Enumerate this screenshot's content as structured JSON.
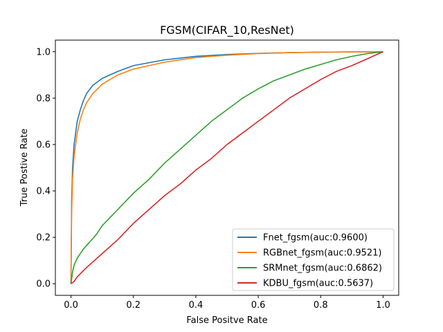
{
  "chart_data": {
    "type": "line",
    "title": "FGSM(CIFAR_10,ResNet)",
    "xlabel": "False Positve Rate",
    "ylabel": "True Postive Rate",
    "xlim": [
      -0.05,
      1.05
    ],
    "ylim": [
      -0.05,
      1.05
    ],
    "x_ticks": [
      "0.0",
      "0.2",
      "0.4",
      "0.6",
      "0.8",
      "1.0"
    ],
    "y_ticks": [
      "0.0",
      "0.2",
      "0.4",
      "0.6",
      "0.8",
      "1.0"
    ],
    "grid": false,
    "legend_position": "bottom-right",
    "series": [
      {
        "name": "Fnet_fgsm(auc:0.9600)",
        "color": "#1f77b4",
        "points": [
          [
            0,
            0
          ],
          [
            0.002,
            0.35
          ],
          [
            0.005,
            0.5
          ],
          [
            0.01,
            0.6
          ],
          [
            0.02,
            0.7
          ],
          [
            0.03,
            0.75
          ],
          [
            0.04,
            0.79
          ],
          [
            0.05,
            0.82
          ],
          [
            0.07,
            0.855
          ],
          [
            0.1,
            0.885
          ],
          [
            0.15,
            0.915
          ],
          [
            0.2,
            0.94
          ],
          [
            0.3,
            0.965
          ],
          [
            0.4,
            0.98
          ],
          [
            0.5,
            0.988
          ],
          [
            0.6,
            0.993
          ],
          [
            0.7,
            0.996
          ],
          [
            0.8,
            0.998
          ],
          [
            0.9,
            0.999
          ],
          [
            1.0,
            1.0
          ]
        ]
      },
      {
        "name": "RGBnet_fgsm(auc:0.9521)",
        "color": "#ff7f0e",
        "points": [
          [
            0,
            0
          ],
          [
            0.002,
            0.3
          ],
          [
            0.005,
            0.45
          ],
          [
            0.01,
            0.55
          ],
          [
            0.02,
            0.65
          ],
          [
            0.03,
            0.71
          ],
          [
            0.04,
            0.75
          ],
          [
            0.05,
            0.78
          ],
          [
            0.07,
            0.82
          ],
          [
            0.1,
            0.86
          ],
          [
            0.15,
            0.9
          ],
          [
            0.2,
            0.925
          ],
          [
            0.3,
            0.955
          ],
          [
            0.4,
            0.975
          ],
          [
            0.5,
            0.985
          ],
          [
            0.6,
            0.992
          ],
          [
            0.7,
            0.996
          ],
          [
            0.8,
            0.998
          ],
          [
            0.9,
            0.999
          ],
          [
            1.0,
            1.0
          ]
        ]
      },
      {
        "name": "SRMnet_fgsm(auc:0.6862)",
        "color": "#2ca02c",
        "points": [
          [
            0,
            0
          ],
          [
            0.005,
            0.05
          ],
          [
            0.01,
            0.08
          ],
          [
            0.02,
            0.11
          ],
          [
            0.04,
            0.15
          ],
          [
            0.06,
            0.18
          ],
          [
            0.08,
            0.21
          ],
          [
            0.1,
            0.25
          ],
          [
            0.15,
            0.32
          ],
          [
            0.2,
            0.39
          ],
          [
            0.25,
            0.45
          ],
          [
            0.3,
            0.52
          ],
          [
            0.35,
            0.58
          ],
          [
            0.4,
            0.64
          ],
          [
            0.45,
            0.7
          ],
          [
            0.5,
            0.75
          ],
          [
            0.55,
            0.8
          ],
          [
            0.6,
            0.84
          ],
          [
            0.65,
            0.875
          ],
          [
            0.7,
            0.9
          ],
          [
            0.75,
            0.925
          ],
          [
            0.8,
            0.945
          ],
          [
            0.85,
            0.965
          ],
          [
            0.9,
            0.98
          ],
          [
            0.95,
            0.992
          ],
          [
            1.0,
            1.0
          ]
        ]
      },
      {
        "name": "KDBU_fgsm(auc:0.5637)",
        "color": "#d62728",
        "points": [
          [
            0,
            0
          ],
          [
            0.01,
            0.01
          ],
          [
            0.02,
            0.03
          ],
          [
            0.05,
            0.07
          ],
          [
            0.1,
            0.13
          ],
          [
            0.15,
            0.19
          ],
          [
            0.2,
            0.26
          ],
          [
            0.25,
            0.32
          ],
          [
            0.3,
            0.38
          ],
          [
            0.35,
            0.43
          ],
          [
            0.4,
            0.49
          ],
          [
            0.45,
            0.54
          ],
          [
            0.5,
            0.6
          ],
          [
            0.55,
            0.65
          ],
          [
            0.6,
            0.7
          ],
          [
            0.65,
            0.75
          ],
          [
            0.7,
            0.8
          ],
          [
            0.75,
            0.84
          ],
          [
            0.8,
            0.88
          ],
          [
            0.85,
            0.915
          ],
          [
            0.9,
            0.94
          ],
          [
            0.95,
            0.97
          ],
          [
            1.0,
            1.0
          ]
        ]
      }
    ]
  }
}
